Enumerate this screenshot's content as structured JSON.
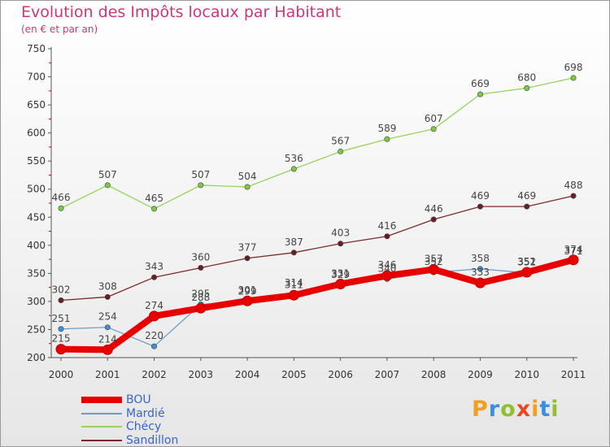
{
  "title": "Evolution des Impôts locaux par Habitant",
  "subtitle": "(en € et par an)",
  "brand": {
    "letters": [
      "P",
      "r",
      "o",
      "x",
      "i",
      "t",
      "i"
    ],
    "colors": [
      "#f0a020",
      "#3c8ee0",
      "#90c030",
      "#e84a20",
      "#f0a020",
      "#3c8ee0",
      "#90c030"
    ]
  },
  "chart_data": {
    "type": "line",
    "title": "Evolution des Impôts locaux par Habitant",
    "subtitle": "(en € et par an)",
    "x": [
      "2000",
      "2001",
      "2002",
      "2003",
      "2004",
      "2005",
      "2006",
      "2007",
      "2008",
      "2009",
      "2010",
      "2011"
    ],
    "ylim": [
      200,
      750
    ],
    "yticks": [
      200,
      250,
      300,
      350,
      400,
      450,
      500,
      550,
      600,
      650,
      700,
      750
    ],
    "grid": false,
    "legend": "bottom-left",
    "series": [
      {
        "name": "BOU",
        "color": "#e80000",
        "values": [
          215,
          214,
          274,
          288,
          301,
          311,
          331,
          346,
          357,
          333,
          352,
          374
        ],
        "labels": [
          "215",
          "214",
          "274",
          "288",
          "301",
          "311",
          "331",
          "346",
          "357",
          "333",
          "352",
          "374"
        ]
      },
      {
        "name": "Mardié",
        "color": "#6f9cc4",
        "values": [
          251,
          254,
          220,
          295,
          299,
          314,
          329,
          340,
          352,
          358,
          351,
          371
        ],
        "labels": [
          "251",
          "254",
          "220",
          "295",
          "299",
          "314",
          "329",
          "340",
          "352",
          "358",
          "351",
          "371"
        ]
      },
      {
        "name": "Chécy",
        "color": "#98d25f",
        "values": [
          466,
          507,
          465,
          507,
          504,
          536,
          567,
          589,
          607,
          669,
          680,
          698
        ],
        "labels": [
          "466",
          "507",
          "465",
          "507",
          "504",
          "536",
          "567",
          "589",
          "607",
          "669",
          "680",
          "698"
        ]
      },
      {
        "name": "Sandillon",
        "color": "#7a2a2a",
        "values": [
          302,
          308,
          343,
          360,
          377,
          387,
          403,
          416,
          446,
          469,
          469,
          488
        ],
        "labels": [
          "302",
          "308",
          "343",
          "360",
          "377",
          "387",
          "403",
          "416",
          "446",
          "469",
          "469",
          "488"
        ]
      }
    ]
  }
}
